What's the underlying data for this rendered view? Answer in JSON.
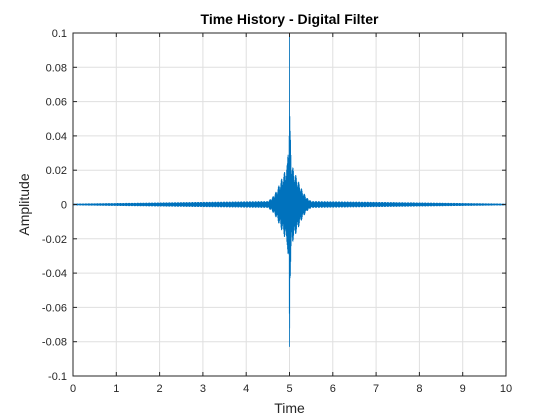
{
  "chart_data": {
    "type": "line",
    "title": "Time History - Digital Filter",
    "xlabel": "Time",
    "ylabel": "Amplitude",
    "xlim": [
      0,
      10
    ],
    "ylim": [
      -0.1,
      0.1
    ],
    "xticks": [
      0,
      1,
      2,
      3,
      4,
      5,
      6,
      7,
      8,
      9,
      10
    ],
    "yticks": [
      -0.1,
      -0.08,
      -0.06,
      -0.04,
      -0.02,
      0,
      0.02,
      0.04,
      0.06,
      0.08,
      0.1
    ],
    "xtick_labels": [
      "0",
      "1",
      "2",
      "3",
      "4",
      "5",
      "6",
      "7",
      "8",
      "9",
      "10"
    ],
    "ytick_labels": [
      "-0.1",
      "-0.08",
      "-0.06",
      "-0.04",
      "-0.02",
      "0",
      "0.02",
      "0.04",
      "0.06",
      "0.08",
      "0.1"
    ],
    "grid": true,
    "series_color": "#0072BD",
    "series": [
      {
        "x": [
          0,
          4.5,
          4.6,
          4.7,
          4.8,
          4.9,
          4.95,
          4.98,
          4.99,
          5.0,
          5.01,
          5.02,
          5.05,
          5.1,
          5.2,
          5.3,
          5.4,
          5.5,
          10
        ],
        "envelope": [
          0.0005,
          0.002,
          0.004,
          0.008,
          0.014,
          0.02,
          0.024,
          0.043,
          0.043,
          0.1,
          0.043,
          0.043,
          0.024,
          0.02,
          0.014,
          0.008,
          0.004,
          0.002,
          0.0005
        ],
        "peak_max": 0.1,
        "peak_min": -0.083
      }
    ]
  }
}
